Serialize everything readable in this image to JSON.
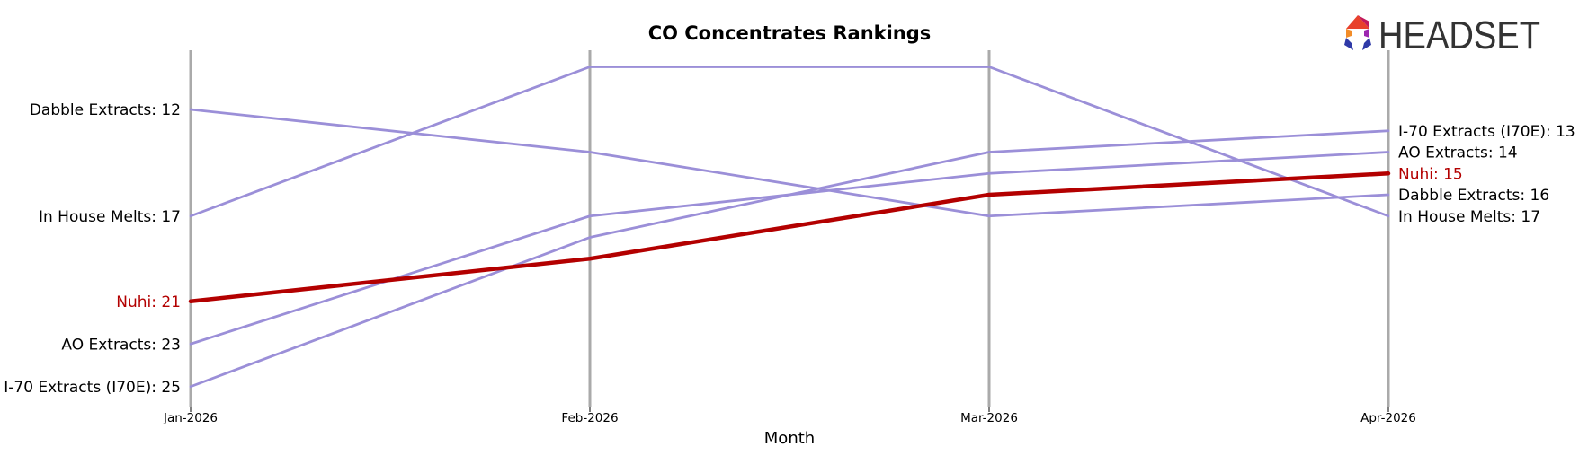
{
  "chart_data": {
    "type": "line",
    "title": "CO Concentrates Rankings",
    "xlabel": "Month",
    "ylabel": "",
    "x": [
      "Jan-2026",
      "Feb-2026",
      "Mar-2026",
      "Apr-2026"
    ],
    "y_inverted": true,
    "ylim": [
      26.0,
      9.5
    ],
    "grid": false,
    "highlight_series": "Nuhi",
    "colors": {
      "highlight": "#b30000",
      "other": "#9b8fd8",
      "axis_line": "#aaaaaa"
    },
    "series": [
      {
        "name": "Dabble Extracts",
        "values": [
          12,
          14,
          17,
          16
        ],
        "start_label": "Dabble Extracts: 12",
        "end_label": "Dabble Extracts: 16"
      },
      {
        "name": "In House Melts",
        "values": [
          17,
          10,
          10,
          17
        ],
        "start_label": "In House Melts: 17",
        "end_label": "In House Melts: 17"
      },
      {
        "name": "Nuhi",
        "values": [
          21,
          19,
          16,
          15
        ],
        "start_label": "Nuhi: 21",
        "end_label": "Nuhi: 15"
      },
      {
        "name": "AO Extracts",
        "values": [
          23,
          17,
          15,
          14
        ],
        "start_label": "AO Extracts: 23",
        "end_label": "AO Extracts: 14"
      },
      {
        "name": "I-70 Extracts (I70E)",
        "values": [
          25,
          18,
          14,
          13
        ],
        "start_label": "I-70 Extracts (I70E): 25",
        "end_label": "I-70 Extracts (I70E): 13"
      }
    ]
  },
  "logo": {
    "text": "HEADSET",
    "icon": "headset-hexagon-logo-icon"
  }
}
